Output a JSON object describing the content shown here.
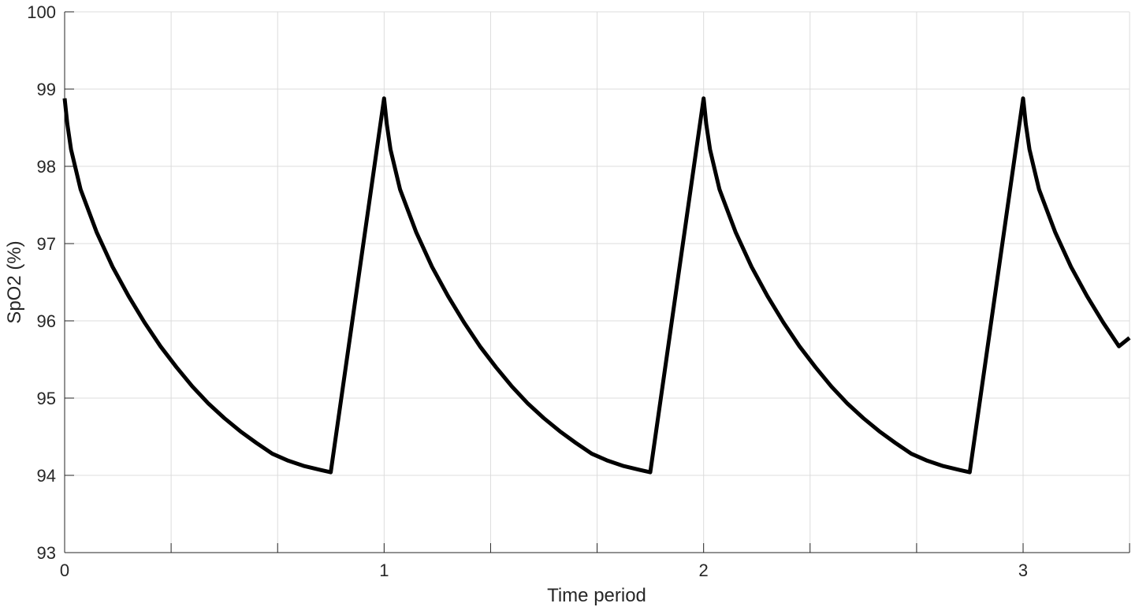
{
  "chart_data": {
    "type": "line",
    "xlabel": "Time period",
    "ylabel": "SpO2 (%)",
    "xlim": [
      0,
      3.333
    ],
    "ylim": [
      93,
      100
    ],
    "x_ticks": [
      0,
      0.3333,
      0.6667,
      1,
      1.3333,
      1.6667,
      2,
      2.3333,
      2.6667,
      3,
      3.3333
    ],
    "x_tick_labels": [
      "0",
      "",
      "",
      "1",
      "",
      "",
      "2",
      "",
      "",
      "3",
      ""
    ],
    "y_ticks": [
      93,
      94,
      95,
      96,
      97,
      98,
      99,
      100
    ],
    "y_tick_labels": [
      "93",
      "94",
      "95",
      "96",
      "97",
      "98",
      "99",
      "100"
    ],
    "grid": true,
    "line_color": "#000000",
    "series": [
      {
        "x": [
          0,
          0.0083,
          0.02,
          0.05,
          0.1,
          0.15,
          0.2,
          0.25,
          0.3,
          0.35,
          0.4,
          0.45,
          0.5,
          0.55,
          0.6,
          0.65,
          0.7,
          0.75,
          0.8,
          0.833,
          1,
          1.0083,
          1.02,
          1.05,
          1.1,
          1.15,
          1.2,
          1.25,
          1.3,
          1.35,
          1.4,
          1.45,
          1.5,
          1.55,
          1.6,
          1.65,
          1.7,
          1.75,
          1.8,
          1.833,
          2,
          2.0083,
          2.02,
          2.05,
          2.1,
          2.15,
          2.2,
          2.25,
          2.3,
          2.35,
          2.4,
          2.45,
          2.5,
          2.55,
          2.6,
          2.65,
          2.7,
          2.75,
          2.8,
          2.833,
          3,
          3.0083,
          3.02,
          3.05,
          3.1,
          3.15,
          3.2,
          3.25,
          3.3,
          3.333
        ],
        "y": [
          98.88,
          98.55,
          98.22,
          97.7,
          97.15,
          96.7,
          96.32,
          95.98,
          95.67,
          95.4,
          95.15,
          94.93,
          94.74,
          94.57,
          94.42,
          94.28,
          94.19,
          94.12,
          94.07,
          94.04,
          98.88,
          98.55,
          98.22,
          97.7,
          97.15,
          96.7,
          96.32,
          95.98,
          95.67,
          95.4,
          95.15,
          94.93,
          94.74,
          94.57,
          94.42,
          94.28,
          94.19,
          94.12,
          94.07,
          94.04,
          98.88,
          98.55,
          98.22,
          97.7,
          97.15,
          96.7,
          96.32,
          95.98,
          95.67,
          95.4,
          95.15,
          94.93,
          94.74,
          94.57,
          94.42,
          94.28,
          94.19,
          94.12,
          94.07,
          94.04,
          98.88,
          98.55,
          98.22,
          97.7,
          97.15,
          96.7,
          96.32,
          95.98,
          95.67,
          95.78
        ]
      }
    ]
  }
}
